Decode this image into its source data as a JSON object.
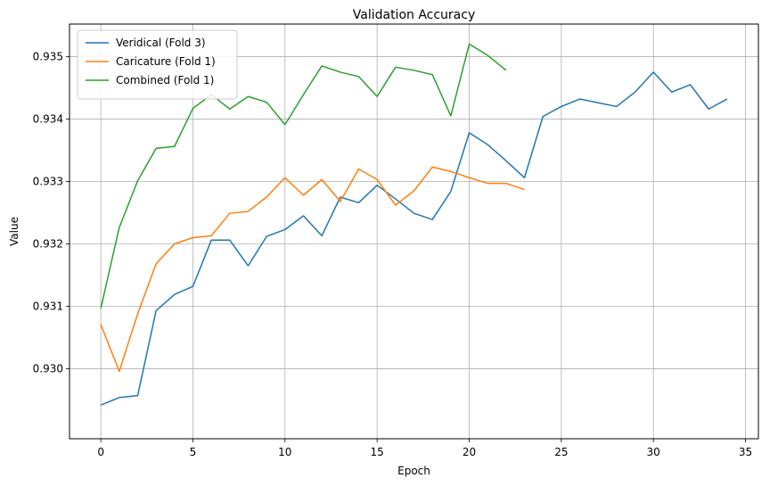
{
  "chart_data": {
    "type": "line",
    "title": "Validation Accuracy",
    "xlabel": "Epoch",
    "ylabel": "Value",
    "xlim": [
      -1.7,
      35.7
    ],
    "ylim": [
      0.92888,
      0.93552
    ],
    "xticks": [
      0,
      5,
      10,
      15,
      20,
      25,
      30,
      35
    ],
    "yticks": [
      0.93,
      0.931,
      0.932,
      0.933,
      0.934,
      0.935
    ],
    "xtick_labels": [
      "0",
      "5",
      "10",
      "15",
      "20",
      "25",
      "30",
      "35"
    ],
    "ytick_labels": [
      "0.930",
      "0.931",
      "0.932",
      "0.933",
      "0.934",
      "0.935"
    ],
    "grid": true,
    "legend_position": "top-left",
    "series": [
      {
        "name": "Veridical (Fold 3)",
        "color": "#1f77b4",
        "x": [
          0,
          1,
          2,
          3,
          4,
          5,
          6,
          7,
          8,
          9,
          10,
          11,
          12,
          13,
          14,
          15,
          16,
          17,
          18,
          19,
          20,
          21,
          22,
          23,
          24,
          25,
          26,
          27,
          28,
          29,
          30,
          31,
          32,
          33,
          34
        ],
        "y": [
          0.92942,
          0.92954,
          0.92957,
          0.93093,
          0.93119,
          0.93132,
          0.93206,
          0.93206,
          0.93165,
          0.93212,
          0.93223,
          0.93245,
          0.93213,
          0.93275,
          0.93266,
          0.93294,
          0.93272,
          0.93249,
          0.93239,
          0.93284,
          0.93378,
          0.93359,
          0.93333,
          0.93306,
          0.93404,
          0.9342,
          0.93432,
          0.93426,
          0.9342,
          0.93443,
          0.93475,
          0.93443,
          0.93455,
          0.93416,
          0.93432
        ]
      },
      {
        "name": "Caricature (Fold 1)",
        "color": "#ff7f0e",
        "x": [
          0,
          1,
          2,
          3,
          4,
          5,
          6,
          7,
          8,
          9,
          10,
          11,
          12,
          13,
          14,
          15,
          16,
          17,
          18,
          19,
          20,
          21,
          22,
          23
        ],
        "y": [
          0.93071,
          0.92996,
          0.93088,
          0.93168,
          0.932,
          0.9321,
          0.93213,
          0.93249,
          0.93252,
          0.93275,
          0.93306,
          0.93278,
          0.93303,
          0.93268,
          0.9332,
          0.93303,
          0.93262,
          0.93285,
          0.93323,
          0.93316,
          0.93306,
          0.93297,
          0.93297,
          0.93287
        ]
      },
      {
        "name": "Combined (Fold 1)",
        "color": "#2ca02c",
        "x": [
          0,
          1,
          2,
          3,
          4,
          5,
          6,
          7,
          8,
          9,
          10,
          11,
          12,
          13,
          14,
          15,
          16,
          17,
          18,
          19,
          20,
          21,
          22
        ],
        "y": [
          0.93097,
          0.93226,
          0.93301,
          0.93353,
          0.93356,
          0.93417,
          0.93439,
          0.93416,
          0.93436,
          0.93427,
          0.93391,
          0.93439,
          0.93485,
          0.93475,
          0.93468,
          0.93436,
          0.93483,
          0.93478,
          0.93471,
          0.93405,
          0.9352,
          0.93502,
          0.93478
        ]
      }
    ]
  }
}
